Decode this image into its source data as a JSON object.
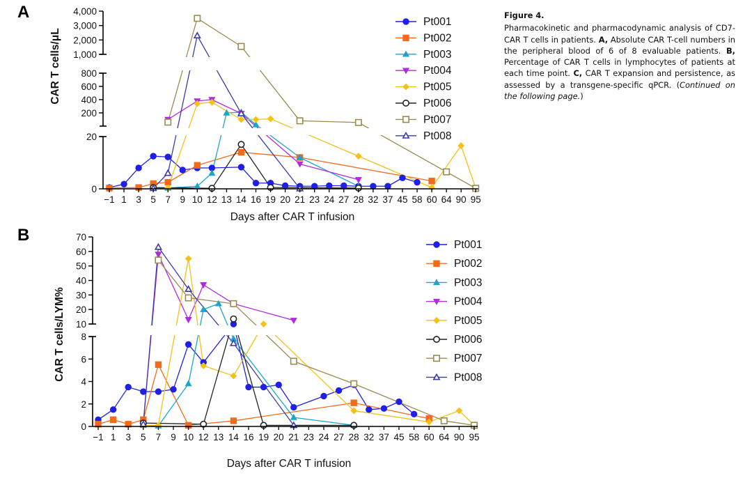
{
  "caption": {
    "title": "Figure 4.",
    "p1": "Pharmacokinetic and pharmacodynamic analysis of CD7-CAR T cells in patients. ",
    "a_label": "A,",
    "p2": " Absolute CAR T-cell numbers in the peripheral blood of 6 of 8 evaluable patients. ",
    "b_label": "B,",
    "p3": " Percentage of CAR T cells in lymphocytes of patients at each time point. ",
    "c_label": "C,",
    "p4": " CAR T expansion and persistence, as assessed by a transgene-specific qPCR. (",
    "cont": "Continued on the following page.",
    "p5": ")"
  },
  "colors": {
    "Pt001": "#1f1fe6",
    "Pt002": "#f26b1d",
    "Pt003": "#1aa6c9",
    "Pt004": "#b02be0",
    "Pt005": "#f5c018",
    "Pt006": "#222222",
    "Pt007": "#9b8a4e",
    "Pt008": "#3a3aa8"
  },
  "chart_data": [
    {
      "panel": "A",
      "type": "line",
      "title": "",
      "xlabel": "Days after CAR T infusion",
      "ylabel": "CAR T cells/μL",
      "categories": [
        "-1",
        "1",
        "3",
        "5",
        "7",
        "9",
        "10",
        "12",
        "13",
        "14",
        "16",
        "19",
        "20",
        "21",
        "23",
        "24",
        "27",
        "28",
        "32",
        "37",
        "45",
        "58",
        "60",
        "64",
        "90",
        "95"
      ],
      "y_segments": [
        {
          "range": [
            0,
            20
          ],
          "ticks": [
            "0",
            "20"
          ]
        },
        {
          "range": [
            0,
            800
          ],
          "ticks": [
            "200",
            "400",
            "600",
            "800"
          ]
        },
        {
          "range": [
            1000,
            4000
          ],
          "ticks": [
            "1,000",
            "2,000",
            "3,000",
            "4,000"
          ]
        }
      ],
      "legend_position": "right",
      "series": [
        {
          "name": "Pt001",
          "marker": "circle",
          "points": [
            [
              -1,
              0.5
            ],
            [
              1,
              1.8
            ],
            [
              3,
              8
            ],
            [
              5,
              12.5
            ],
            [
              7,
              12.2
            ],
            [
              9,
              7.2
            ],
            [
              10,
              8
            ],
            [
              12,
              8
            ],
            [
              14,
              8.3
            ],
            [
              16,
              2.2
            ],
            [
              19,
              2.2
            ],
            [
              20,
              1.2
            ],
            [
              21,
              1
            ],
            [
              23,
              1
            ],
            [
              24,
              1.2
            ],
            [
              27,
              1.2
            ],
            [
              28,
              1
            ],
            [
              32,
              1
            ],
            [
              37,
              1
            ],
            [
              45,
              4.2
            ],
            [
              58,
              2.5
            ]
          ]
        },
        {
          "name": "Pt002",
          "marker": "square",
          "points": [
            [
              -1,
              0.3
            ],
            [
              3,
              0.5
            ],
            [
              5,
              2
            ],
            [
              7,
              2.5
            ],
            [
              10,
              9
            ],
            [
              14,
              14
            ],
            [
              21,
              12
            ],
            [
              60,
              3
            ]
          ]
        },
        {
          "name": "Pt003",
          "marker": "triangle",
          "points": [
            [
              5,
              0.4
            ],
            [
              7,
              0.3
            ],
            [
              10,
              1
            ],
            [
              12,
              6
            ],
            [
              13,
              200
            ],
            [
              14,
              210
            ],
            [
              16,
              22
            ],
            [
              21,
              12
            ],
            [
              28,
              1
            ]
          ]
        },
        {
          "name": "Pt004",
          "marker": "triangle-down",
          "points": [
            [
              7,
              100
            ],
            [
              10,
              380
            ],
            [
              12,
              400
            ],
            [
              14,
              190
            ],
            [
              21,
              9.5
            ],
            [
              28,
              3.5
            ]
          ]
        },
        {
          "name": "Pt005",
          "marker": "diamond",
          "points": [
            [
              7,
              0.4
            ],
            [
              10,
              340
            ],
            [
              12,
              360
            ],
            [
              14,
              100
            ],
            [
              16,
              100
            ],
            [
              19,
              110
            ],
            [
              28,
              12.5
            ],
            [
              60,
              0.5
            ],
            [
              90,
              16.5
            ],
            [
              95,
              0.2
            ]
          ]
        },
        {
          "name": "Pt006",
          "marker": "circle-open",
          "points": [
            [
              5,
              0.5
            ],
            [
              12,
              0.2
            ],
            [
              14,
              17
            ],
            [
              19,
              0.5
            ],
            [
              28,
              0.3
            ]
          ]
        },
        {
          "name": "Pt007",
          "marker": "square-open",
          "points": [
            [
              7,
              60
            ],
            [
              10,
              3500
            ],
            [
              14,
              1550
            ],
            [
              21,
              80
            ],
            [
              28,
              55
            ],
            [
              64,
              6.5
            ],
            [
              95,
              0.2
            ]
          ]
        },
        {
          "name": "Pt008",
          "marker": "triangle-open",
          "points": [
            [
              5,
              0.2
            ],
            [
              7,
              6
            ],
            [
              10,
              2300
            ],
            [
              14,
              190
            ],
            [
              21,
              0.1
            ]
          ]
        }
      ]
    },
    {
      "panel": "B",
      "type": "line",
      "title": "",
      "xlabel": "Days after CAR T infusion",
      "ylabel": "CAR T cells/LYM%",
      "categories": [
        "-1",
        "1",
        "3",
        "5",
        "7",
        "9",
        "10",
        "12",
        "13",
        "14",
        "16",
        "19",
        "20",
        "21",
        "23",
        "24",
        "27",
        "28",
        "32",
        "37",
        "45",
        "58",
        "60",
        "64",
        "90",
        "95"
      ],
      "y_segments": [
        {
          "range": [
            0,
            8
          ],
          "ticks": [
            "0",
            "2",
            "4",
            "6",
            "8"
          ]
        },
        {
          "range": [
            10,
            70
          ],
          "ticks": [
            "10",
            "20",
            "30",
            "40",
            "50",
            "60",
            "70"
          ]
        }
      ],
      "legend_position": "right",
      "series": [
        {
          "name": "Pt001",
          "marker": "circle",
          "points": [
            [
              -1,
              0.6
            ],
            [
              1,
              1.5
            ],
            [
              3,
              3.5
            ],
            [
              5,
              3.1
            ],
            [
              7,
              3.1
            ],
            [
              9,
              3.3
            ],
            [
              10,
              7.3
            ],
            [
              12,
              5.7
            ],
            [
              14,
              9.5
            ],
            [
              16,
              3.5
            ],
            [
              19,
              3.5
            ],
            [
              20,
              3.7
            ],
            [
              21,
              1.7
            ],
            [
              24,
              2.7
            ],
            [
              27,
              3.2
            ],
            [
              28,
              3.7
            ],
            [
              32,
              1.5
            ],
            [
              37,
              1.6
            ],
            [
              45,
              2.2
            ],
            [
              58,
              1.1
            ]
          ]
        },
        {
          "name": "Pt002",
          "marker": "square",
          "points": [
            [
              -1,
              0.2
            ],
            [
              1,
              0.6
            ],
            [
              3,
              0.2
            ],
            [
              5,
              0.6
            ],
            [
              7,
              5.5
            ],
            [
              10,
              0.1
            ],
            [
              14,
              0.5
            ],
            [
              28,
              2.1
            ],
            [
              60,
              0.7
            ]
          ]
        },
        {
          "name": "Pt003",
          "marker": "triangle",
          "points": [
            [
              5,
              0.1
            ],
            [
              7,
              0.05
            ],
            [
              10,
              3.8
            ],
            [
              12,
              20
            ],
            [
              13,
              24
            ],
            [
              14,
              7.8
            ],
            [
              21,
              0.8
            ],
            [
              28,
              0.1
            ]
          ]
        },
        {
          "name": "Pt004",
          "marker": "triangle-down",
          "points": [
            [
              5,
              0.3
            ],
            [
              7,
              58
            ],
            [
              10,
              13
            ],
            [
              12,
              37
            ],
            [
              14,
              24
            ],
            [
              21,
              12.5
            ]
          ]
        },
        {
          "name": "Pt005",
          "marker": "diamond",
          "points": [
            [
              5,
              0.1
            ],
            [
              7,
              0.1
            ],
            [
              10,
              55
            ],
            [
              12,
              5.4
            ],
            [
              14,
              4.5
            ],
            [
              19,
              9.5
            ],
            [
              28,
              1.4
            ],
            [
              60,
              0.4
            ],
            [
              90,
              1.4
            ],
            [
              95,
              0.1
            ]
          ]
        },
        {
          "name": "Pt006",
          "marker": "circle-open",
          "points": [
            [
              5,
              0.3
            ],
            [
              12,
              0.2
            ],
            [
              14,
              13.5
            ],
            [
              19,
              0.1
            ],
            [
              28,
              0.1
            ]
          ]
        },
        {
          "name": "Pt007",
          "marker": "square-open",
          "points": [
            [
              7,
              54
            ],
            [
              10,
              28
            ],
            [
              14,
              24
            ],
            [
              21,
              5.8
            ],
            [
              28,
              3.8
            ],
            [
              64,
              0.5
            ],
            [
              95,
              0.1
            ]
          ]
        },
        {
          "name": "Pt008",
          "marker": "triangle-open",
          "points": [
            [
              5,
              0.2
            ],
            [
              7,
              63
            ],
            [
              10,
              34
            ],
            [
              14,
              7.4
            ],
            [
              21,
              0.1
            ]
          ]
        }
      ]
    }
  ],
  "panel_labels": [
    "A",
    "B"
  ]
}
